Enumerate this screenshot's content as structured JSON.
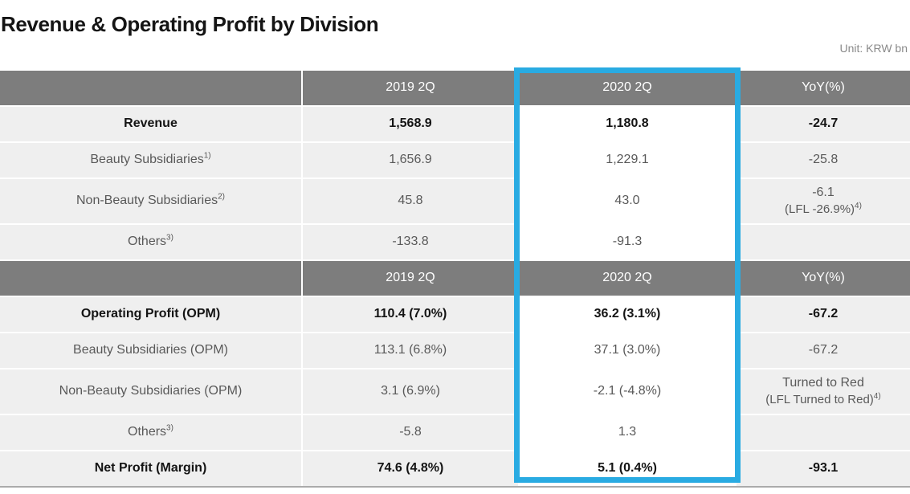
{
  "page": {
    "title": "Revenue & Operating Profit by Division",
    "unit_label": "Unit: KRW bn"
  },
  "colors": {
    "header_bg": "#7d7d7d",
    "row_bg": "#efefef",
    "highlight_border": "#29abe2",
    "title_color": "#151515"
  },
  "table": {
    "highlighted_column": "2020 2Q",
    "sections": [
      {
        "header": [
          "",
          "2019 2Q",
          "2020 2Q",
          "YoY(%)"
        ],
        "rows": [
          {
            "label": "Revenue",
            "sup": "",
            "bold": true,
            "cells": [
              {
                "text": "1,568.9"
              },
              {
                "text": "1,180.8"
              },
              {
                "text": "-24.7"
              }
            ]
          },
          {
            "label": "Beauty Subsidiaries",
            "sup": "1)",
            "bold": false,
            "cells": [
              {
                "text": "1,656.9"
              },
              {
                "text": "1,229.1"
              },
              {
                "text": "-25.8"
              }
            ]
          },
          {
            "label": "Non-Beauty Subsidiaries",
            "sup": "2)",
            "bold": false,
            "cells": [
              {
                "text": "45.8"
              },
              {
                "text": "43.0"
              },
              {
                "text": "-6.1",
                "line2": "(LFL -26.9%)",
                "line2_sup": "4)"
              }
            ]
          },
          {
            "label": "Others",
            "sup": "3)",
            "bold": false,
            "cells": [
              {
                "text": "-133.8"
              },
              {
                "text": "-91.3"
              },
              {
                "text": ""
              }
            ]
          }
        ]
      },
      {
        "header": [
          "",
          "2019 2Q",
          "2020 2Q",
          "YoY(%)"
        ],
        "rows": [
          {
            "label": "Operating Profit (OPM)",
            "sup": "",
            "bold": true,
            "cells": [
              {
                "text": "110.4 (7.0%)"
              },
              {
                "text": "36.2 (3.1%)"
              },
              {
                "text": "-67.2"
              }
            ]
          },
          {
            "label": "Beauty Subsidiaries (OPM)",
            "sup": "",
            "bold": false,
            "cells": [
              {
                "text": "113.1 (6.8%)"
              },
              {
                "text": "37.1 (3.0%)"
              },
              {
                "text": "-67.2"
              }
            ]
          },
          {
            "label": "Non-Beauty Subsidiaries (OPM)",
            "sup": "",
            "bold": false,
            "cells": [
              {
                "text": "3.1 (6.9%)"
              },
              {
                "text": "-2.1 (-4.8%)"
              },
              {
                "text": "Turned to Red",
                "line2": "(LFL Turned to Red)",
                "line2_sup": "4)"
              }
            ]
          },
          {
            "label": "Others",
            "sup": "3)",
            "bold": false,
            "cells": [
              {
                "text": "-5.8"
              },
              {
                "text": "1.3"
              },
              {
                "text": ""
              }
            ]
          },
          {
            "label": "Net Profit (Margin)",
            "sup": "",
            "bold": true,
            "cells": [
              {
                "text": "74.6 (4.8%)"
              },
              {
                "text": "5.1 (0.4%)"
              },
              {
                "text": "-93.1"
              }
            ]
          }
        ]
      }
    ]
  }
}
